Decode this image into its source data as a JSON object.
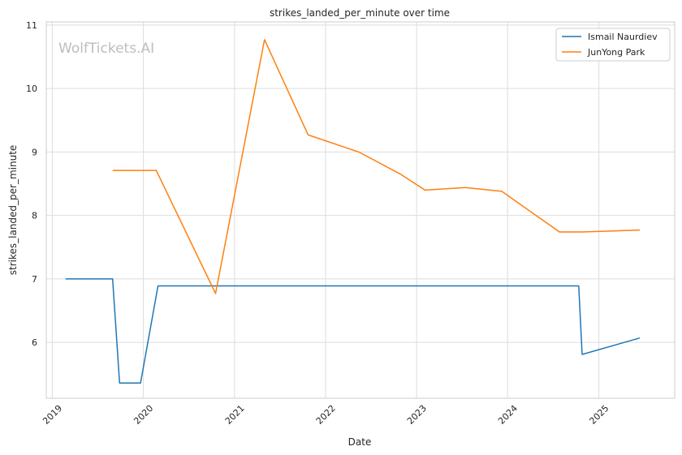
{
  "chart_data": {
    "type": "line",
    "title": "strikes_landed_per_minute over time",
    "xlabel": "Date",
    "ylabel": "strikes_landed_per_minute",
    "watermark": "WolfTickets.AI",
    "x_ticks": [
      "2019",
      "2020",
      "2021",
      "2022",
      "2023",
      "2024",
      "2025"
    ],
    "y_ticks": [
      "6",
      "7",
      "8",
      "9",
      "10",
      "11"
    ],
    "xlim": [
      "2018-12-08",
      "2025-11-01"
    ],
    "ylim": [
      5.12,
      11.05
    ],
    "grid": true,
    "legend_position": "top-right",
    "series": [
      {
        "name": "Ismail Naurdiev",
        "color": "#1f77b4",
        "points": [
          [
            "2019-02-23",
            7.0
          ],
          [
            "2019-08-31",
            7.0
          ],
          [
            "2019-09-28",
            5.36
          ],
          [
            "2019-12-21",
            5.36
          ],
          [
            "2020-02-29",
            6.89
          ],
          [
            "2024-10-12",
            6.89
          ],
          [
            "2024-10-26",
            5.81
          ],
          [
            "2025-06-14",
            6.07
          ]
        ]
      },
      {
        "name": "JunYong Park",
        "color": "#ff7f0e",
        "points": [
          [
            "2019-08-31",
            8.71
          ],
          [
            "2020-02-22",
            8.71
          ],
          [
            "2020-10-17",
            6.77
          ],
          [
            "2021-05-01",
            10.77
          ],
          [
            "2021-10-23",
            9.27
          ],
          [
            "2022-05-14",
            9.0
          ],
          [
            "2022-10-29",
            8.65
          ],
          [
            "2023-02-04",
            8.4
          ],
          [
            "2023-07-15",
            8.44
          ],
          [
            "2023-12-09",
            8.38
          ],
          [
            "2024-07-27",
            7.74
          ],
          [
            "2024-10-26",
            7.74
          ],
          [
            "2025-06-14",
            7.77
          ]
        ]
      }
    ]
  }
}
